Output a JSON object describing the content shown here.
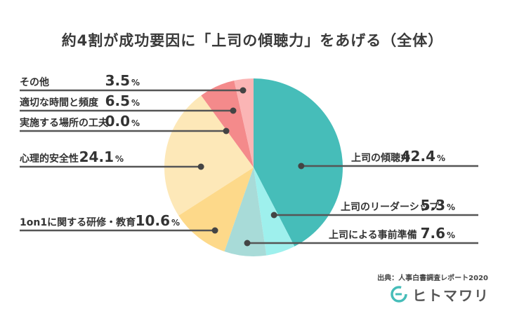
{
  "chart_data": {
    "type": "pie",
    "title": "約4割が成功要因に「上司の傾聴力」をあげる（全体）",
    "unit": "%",
    "series": [
      {
        "name": "上司の傾聴力",
        "value": 42.4,
        "color": "#46bdb9"
      },
      {
        "name": "上司のリーダーシップ",
        "value": 5.3,
        "color": "#9ef0ed"
      },
      {
        "name": "上司による事前準備",
        "value": 7.6,
        "color": "#a8dbd8"
      },
      {
        "name": "1on1に関する研修・教育",
        "value": 10.6,
        "color": "#fdd98a"
      },
      {
        "name": "心理的安全性",
        "value": 24.1,
        "color": "#fde8b8"
      },
      {
        "name": "実施する場所の工夫",
        "value": 0.0,
        "color": "#fde8b8"
      },
      {
        "name": "適切な時間と頻度",
        "value": 6.5,
        "color": "#f48a8b"
      },
      {
        "name": "その他",
        "value": 3.5,
        "color": "#fbb5b5"
      }
    ]
  },
  "labels": [
    {
      "name": "上司の傾聴力",
      "value": "42.4"
    },
    {
      "name": "上司のリーダーシップ",
      "value": "5.3"
    },
    {
      "name": "上司による事前準備",
      "value": "7.6"
    },
    {
      "name": "1on1に関する研修・教育",
      "value": "10.6"
    },
    {
      "name": "心理的安全性",
      "value": "24.1"
    },
    {
      "name": "実施する場所の工夫",
      "value": "0.0"
    },
    {
      "name": "適切な時間と頻度",
      "value": "6.5"
    },
    {
      "name": "その他",
      "value": "3.5"
    }
  ],
  "pct_symbol": "%",
  "source": "出典：人事白書調査レポート2020",
  "brand": {
    "name": "ヒトマワリ",
    "color": "#46bdb9"
  }
}
